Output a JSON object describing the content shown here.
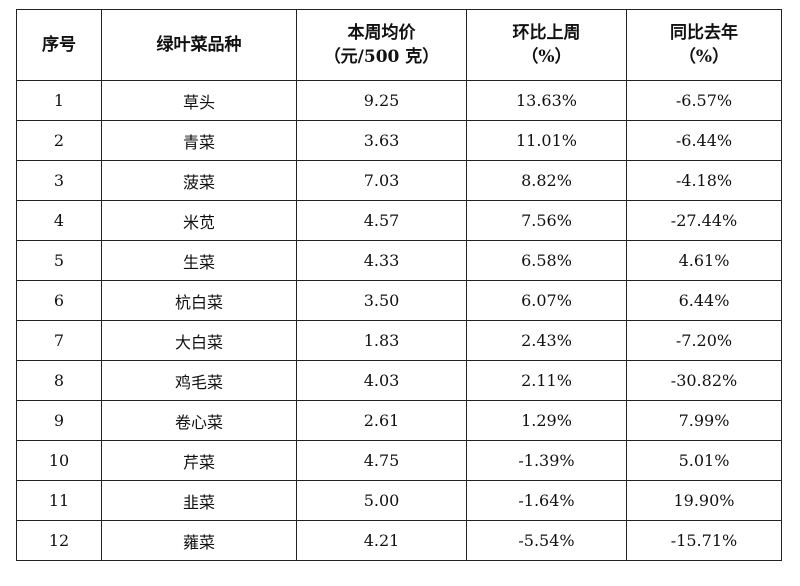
{
  "table": {
    "headers": {
      "index": "序号",
      "variety": "绿叶菜品种",
      "price_line1": "本周均价",
      "price_line2": "（元/500 克）",
      "wow_line1": "环比上周",
      "wow_line2": "（%）",
      "yoy_line1": "同比去年",
      "yoy_line2": "（%）"
    },
    "rows": [
      {
        "index": "1",
        "variety": "草头",
        "price": "9.25",
        "wow": "13.63%",
        "yoy": "-6.57%"
      },
      {
        "index": "2",
        "variety": "青菜",
        "price": "3.63",
        "wow": "11.01%",
        "yoy": "-6.44%"
      },
      {
        "index": "3",
        "variety": "菠菜",
        "price": "7.03",
        "wow": "8.82%",
        "yoy": "-4.18%"
      },
      {
        "index": "4",
        "variety": "米苋",
        "price": "4.57",
        "wow": "7.56%",
        "yoy": "-27.44%"
      },
      {
        "index": "5",
        "variety": "生菜",
        "price": "4.33",
        "wow": "6.58%",
        "yoy": "4.61%"
      },
      {
        "index": "6",
        "variety": "杭白菜",
        "price": "3.50",
        "wow": "6.07%",
        "yoy": "6.44%"
      },
      {
        "index": "7",
        "variety": "大白菜",
        "price": "1.83",
        "wow": "2.43%",
        "yoy": "-7.20%"
      },
      {
        "index": "8",
        "variety": "鸡毛菜",
        "price": "4.03",
        "wow": "2.11%",
        "yoy": "-30.82%"
      },
      {
        "index": "9",
        "variety": "卷心菜",
        "price": "2.61",
        "wow": "1.29%",
        "yoy": "7.99%"
      },
      {
        "index": "10",
        "variety": "芹菜",
        "price": "4.75",
        "wow": "-1.39%",
        "yoy": "5.01%"
      },
      {
        "index": "11",
        "variety": "韭菜",
        "price": "5.00",
        "wow": "-1.64%",
        "yoy": "19.90%"
      },
      {
        "index": "12",
        "variety": "蕹菜",
        "price": "4.21",
        "wow": "-5.54%",
        "yoy": "-15.71%"
      }
    ]
  }
}
